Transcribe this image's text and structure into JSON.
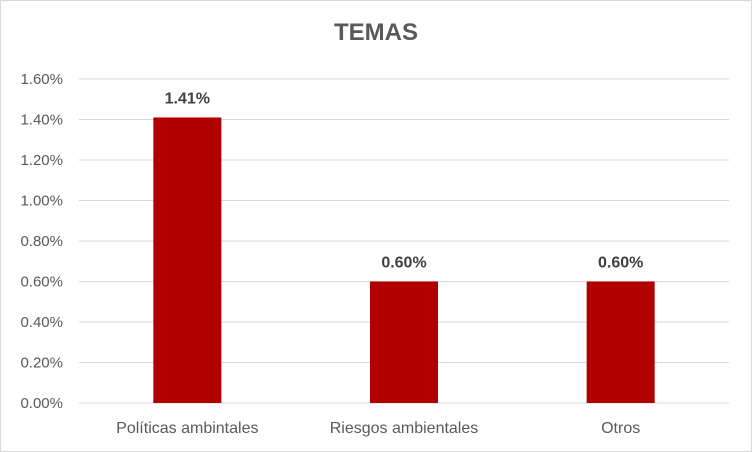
{
  "chart_data": {
    "type": "bar",
    "title": "TEMAS",
    "categories": [
      "Políticas ambintales",
      "Riesgos ambientales",
      "Otros"
    ],
    "values": [
      1.41,
      0.6,
      0.6
    ],
    "data_labels": [
      "1.41%",
      "0.60%",
      "0.60%"
    ],
    "ylim": [
      0,
      1.6
    ],
    "yticks": [
      0,
      0.2,
      0.4,
      0.6,
      0.8,
      1.0,
      1.2,
      1.4,
      1.6
    ],
    "ytick_labels": [
      "0.00%",
      "0.20%",
      "0.40%",
      "0.60%",
      "0.80%",
      "1.00%",
      "1.20%",
      "1.40%",
      "1.60%"
    ],
    "xlabel": "",
    "ylabel": "",
    "grid": true,
    "legend": "none",
    "bar_color": "#b00000"
  }
}
